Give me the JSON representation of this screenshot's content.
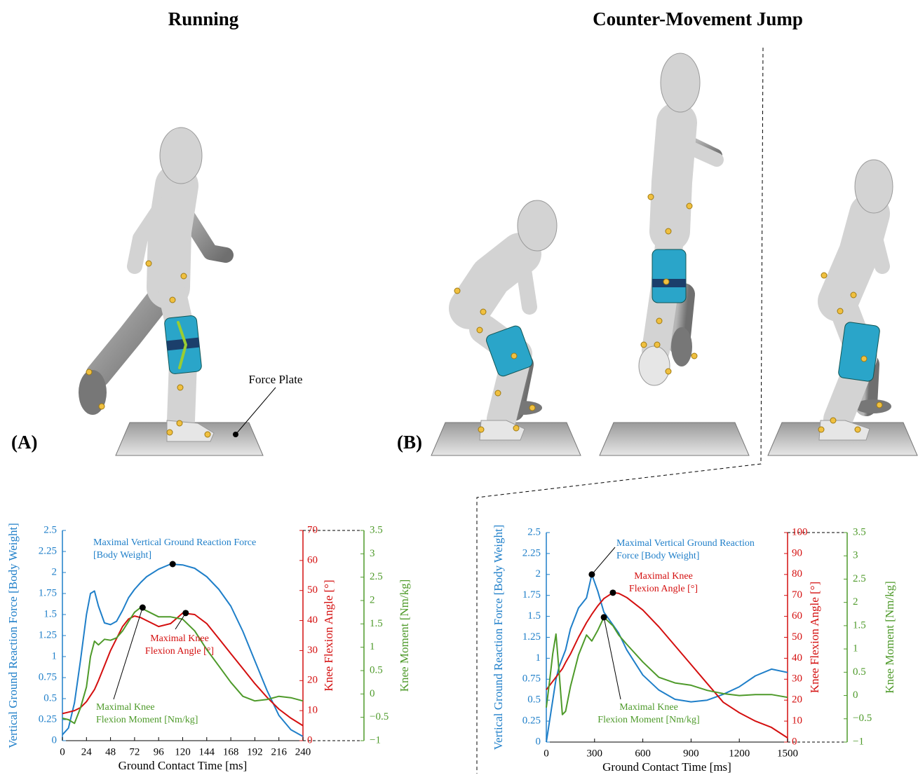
{
  "panels": [
    {
      "label": "(A)",
      "title": "Running",
      "annotation": "Force Plate"
    },
    {
      "label": "(B)",
      "title": "Counter-Movement Jump"
    }
  ],
  "chart_data": [
    {
      "type": "line",
      "xlabel": "Ground Contact Time [ms]",
      "ylabel": "Vertical Ground Reaction Force [Body Weight]",
      "y2label": "Knee Flexion Angle [°]",
      "y3label": "Knee Moment [Nm/kg]",
      "x": [
        0,
        6,
        12,
        18,
        24,
        28,
        32,
        36,
        42,
        48,
        54,
        60,
        66,
        72,
        78,
        84,
        96,
        108,
        120,
        132,
        144,
        156,
        168,
        180,
        192,
        204,
        216,
        228,
        240
      ],
      "xlim": [
        0,
        240
      ],
      "xticks": [
        0,
        24,
        48,
        72,
        96,
        120,
        144,
        168,
        192,
        216,
        240
      ],
      "ylim": [
        0,
        2.5
      ],
      "yticks": [
        0,
        0.25,
        0.5,
        0.75,
        1,
        1.25,
        1.5,
        1.75,
        2,
        2.25,
        2.5
      ],
      "y2lim": [
        0,
        70
      ],
      "y2ticks": [
        0,
        10,
        20,
        30,
        40,
        50,
        60,
        70
      ],
      "y3lim": [
        -1,
        3.5
      ],
      "y3ticks": [
        {
          "value": -1,
          "label": "−1"
        },
        {
          "value": -0.5,
          "label": "−0.5"
        },
        0,
        0.5,
        1,
        1.5,
        2,
        2.5,
        3,
        3.5
      ],
      "series": [
        {
          "color": "#1f7fc9",
          "axis": "y",
          "values": [
            0.07,
            0.15,
            0.45,
            0.95,
            1.5,
            1.75,
            1.78,
            1.6,
            1.4,
            1.38,
            1.42,
            1.55,
            1.7,
            1.8,
            1.88,
            1.95,
            2.04,
            2.1,
            2.09,
            2.05,
            1.95,
            1.8,
            1.6,
            1.3,
            0.95,
            0.6,
            0.3,
            0.13,
            0.05
          ]
        },
        {
          "color": "#d40f0f",
          "axis": "y2",
          "values": [
            9,
            9.5,
            10,
            11,
            13,
            15,
            17,
            20,
            25,
            30,
            34,
            38,
            40.5,
            41.5,
            41,
            40,
            38,
            39,
            42.5,
            42,
            39,
            34,
            29,
            24,
            19,
            14.5,
            10.5,
            7.5,
            5
          ]
        },
        {
          "color": "#4e9a2a",
          "axis": "y3",
          "values": [
            -0.52,
            -0.55,
            -0.63,
            -0.3,
            0.15,
            0.8,
            1.13,
            1.05,
            1.17,
            1.15,
            1.2,
            1.35,
            1.55,
            1.75,
            1.85,
            1.78,
            1.65,
            1.65,
            1.6,
            1.35,
            0.95,
            0.6,
            0.25,
            -0.05,
            -0.15,
            -0.12,
            -0.05,
            -0.08,
            -0.15
          ]
        }
      ],
      "annotations": [
        {
          "lines": [
            "Maximal Vertical Ground Reaction Force",
            "[Body Weight]"
          ],
          "color": "#1f7fc9",
          "x": 110,
          "y": 2.1,
          "axis": "y"
        },
        {
          "lines": [
            "Maximal Knee",
            "Flexion Angle [°]"
          ],
          "color": "#d40f0f",
          "x": 123,
          "y": 42.5,
          "axis": "y2"
        },
        {
          "lines": [
            "Maximal Knee",
            "Flexion Moment [Nm/kg]"
          ],
          "color": "#4e9a2a",
          "x": 80,
          "y": 1.85,
          "axis": "y3"
        }
      ]
    },
    {
      "type": "line",
      "xlabel": "Ground Contact Time [ms]",
      "ylabel": "Vertical Ground Reaction Force [Body Weight]",
      "y2label": "Knee Flexion Angle [°]",
      "y3label": "Knee Moment [Nm/kg]",
      "x": [
        0,
        20,
        40,
        60,
        80,
        100,
        120,
        150,
        200,
        250,
        283,
        320,
        358,
        414,
        450,
        500,
        600,
        700,
        800,
        900,
        1000,
        1100,
        1200,
        1300,
        1400,
        1500
      ],
      "xlim": [
        0,
        1500
      ],
      "xticks": [
        0,
        300,
        600,
        900,
        1200,
        1500
      ],
      "ylim": [
        0,
        2.5
      ],
      "yticks": [
        0,
        0.25,
        0.5,
        0.75,
        1,
        1.25,
        1.5,
        1.75,
        2,
        2.25,
        2.5
      ],
      "y2lim": [
        0,
        100
      ],
      "y2ticks": [
        0,
        10,
        20,
        30,
        40,
        50,
        60,
        70,
        80,
        90,
        100
      ],
      "y3lim": [
        -1,
        3.5
      ],
      "y3ticks": [
        {
          "value": -1,
          "label": "−1"
        },
        {
          "value": -0.5,
          "label": "−0.5"
        },
        0,
        0.5,
        1,
        1.5,
        2,
        2.5,
        3,
        3.5
      ],
      "series": [
        {
          "color": "#1f7fc9",
          "axis": "y",
          "values": [
            0,
            0.25,
            0.5,
            0.75,
            0.9,
            1.0,
            1.1,
            1.35,
            1.6,
            1.72,
            2.0,
            1.8,
            1.55,
            1.4,
            1.3,
            1.1,
            0.8,
            0.62,
            0.51,
            0.48,
            0.5,
            0.57,
            0.66,
            0.79,
            0.87,
            0.83
          ]
        },
        {
          "color": "#d40f0f",
          "axis": "y2",
          "values": [
            25,
            27,
            29,
            31,
            33,
            35,
            38,
            42,
            50,
            57,
            61,
            65,
            68.5,
            71.3,
            71,
            69,
            63,
            55,
            46,
            37,
            28,
            19,
            14,
            10,
            7,
            2
          ]
        },
        {
          "color": "#4e9a2a",
          "axis": "y3",
          "values": [
            -0.26,
            0.3,
            0.9,
            1.32,
            0.49,
            -0.41,
            -0.34,
            0.19,
            0.87,
            1.3,
            1.17,
            1.4,
            1.68,
            1.5,
            1.3,
            1.1,
            0.72,
            0.39,
            0.27,
            0.22,
            0.11,
            0.04,
            0,
            0.02,
            0.02,
            -0.04
          ]
        }
      ],
      "annotations": [
        {
          "lines": [
            "Maximal Vertical Ground Reaction",
            "Force [Body Weight]"
          ],
          "color": "#1f7fc9",
          "x": 283,
          "y": 2.0,
          "axis": "y"
        },
        {
          "lines": [
            "Maximal Knee",
            "Flexion Angle [°]"
          ],
          "color": "#d40f0f",
          "x": 414,
          "y": 71.3,
          "axis": "y2"
        },
        {
          "lines": [
            "Maximal Knee",
            "Flexion Moment [Nm/kg]"
          ],
          "color": "#4e9a2a",
          "x": 358,
          "y": 1.68,
          "axis": "y3"
        }
      ]
    }
  ]
}
